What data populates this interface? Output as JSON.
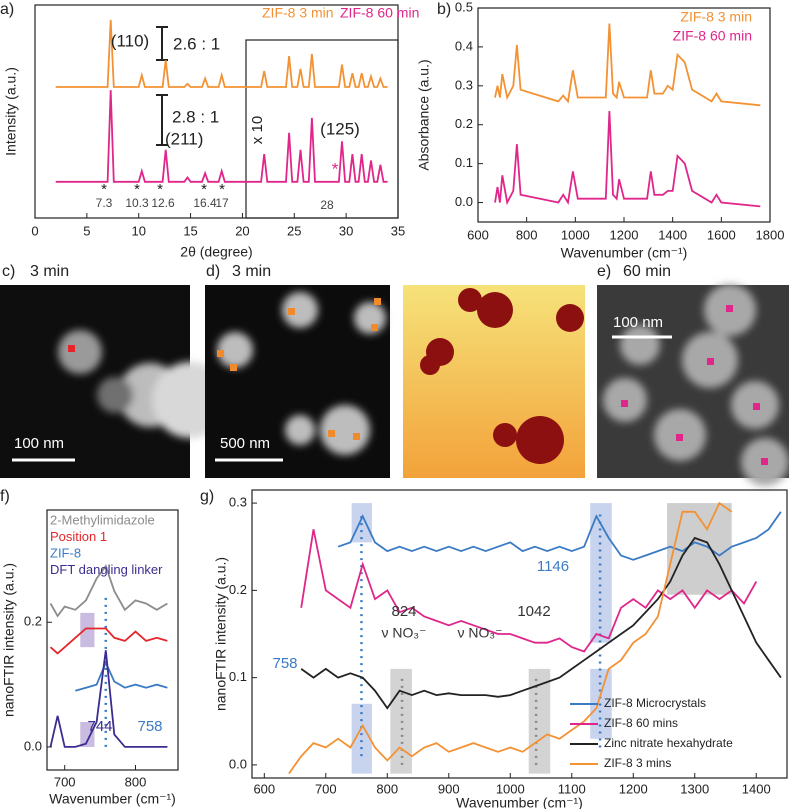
{
  "chart_data": [
    {
      "type": "line",
      "panel": "a)",
      "x_label": "2θ (degree)",
      "y_label": "Intensity (a.u.)",
      "xlim": [
        0,
        35
      ],
      "ylim": [
        0,
        1
      ],
      "xticks": [
        0,
        5,
        10,
        15,
        20,
        25,
        30,
        35
      ],
      "legend": "upper right",
      "x": [
        2,
        7.0,
        7.3,
        7.6,
        10.0,
        10.3,
        10.6,
        12.3,
        12.6,
        12.9,
        14.4,
        14.7,
        15.0,
        16.1,
        16.4,
        16.7,
        17.7,
        18.0,
        18.3,
        21.8,
        22.1,
        22.4,
        24.2,
        24.5,
        24.8,
        25.3,
        25.6,
        25.9,
        26.4,
        26.7,
        27.0,
        29.3,
        29.6,
        29.9,
        30.3,
        30.6,
        30.9,
        31.2,
        31.5,
        31.8,
        32.1,
        32.4,
        32.7,
        33.0,
        33.3,
        33.6,
        34
      ],
      "series": [
        {
          "name": "ZIF-8 3 min",
          "color": "#f39234",
          "values": [
            0.615,
            0.615,
            0.93,
            0.615,
            0.615,
            0.67,
            0.615,
            0.615,
            0.74,
            0.615,
            0.615,
            0.63,
            0.615,
            0.615,
            0.655,
            0.615,
            0.615,
            0.67,
            0.615,
            0.615,
            0.69,
            0.615,
            0.615,
            0.76,
            0.615,
            0.615,
            0.7,
            0.615,
            0.615,
            0.77,
            0.615,
            0.615,
            0.72,
            0.615,
            0.615,
            0.68,
            0.615,
            0.615,
            0.68,
            0.615,
            0.615,
            0.665,
            0.615,
            0.615,
            0.655,
            0.615,
            0.615
          ]
        },
        {
          "name": "ZIF-8 60 min",
          "color": "#e0268a",
          "values": [
            0.17,
            0.17,
            0.6,
            0.17,
            0.17,
            0.22,
            0.17,
            0.17,
            0.32,
            0.17,
            0.17,
            0.19,
            0.17,
            0.17,
            0.21,
            0.17,
            0.17,
            0.22,
            0.17,
            0.17,
            0.3,
            0.17,
            0.17,
            0.4,
            0.17,
            0.17,
            0.32,
            0.17,
            0.17,
            0.47,
            0.17,
            0.17,
            0.36,
            0.17,
            0.17,
            0.3,
            0.17,
            0.17,
            0.3,
            0.17,
            0.17,
            0.27,
            0.17,
            0.17,
            0.25,
            0.17,
            0.17
          ]
        }
      ],
      "annotations": [
        "(110)",
        "2.6 : 1",
        "2.8 : 1",
        "(211)",
        "x 10",
        "(125)",
        "*",
        "*",
        "*",
        "*",
        "*",
        "*",
        "7.3",
        "10.3",
        "12.6",
        "16.4",
        "17",
        "28"
      ]
    },
    {
      "type": "line",
      "panel": "b)",
      "x_label": "Wavenumber (cm⁻¹)",
      "y_label": "Absorbance (a.u.)",
      "xlim": [
        600,
        1800
      ],
      "ylim": [
        -0.05,
        0.5
      ],
      "xticks": [
        600,
        800,
        1000,
        1200,
        1400,
        1600,
        1800
      ],
      "yticks": [
        {
          "value": 0,
          "label": "0.0"
        },
        {
          "value": 0.1,
          "label": "0.1"
        },
        {
          "value": 0.2,
          "label": "0.2"
        },
        {
          "value": 0.3,
          "label": "0.3"
        },
        {
          "value": 0.4,
          "label": "0.4"
        },
        {
          "value": 0.5,
          "label": "0.5"
        }
      ],
      "legend": "upper right",
      "x": [
        670,
        680,
        690,
        700,
        720,
        745,
        760,
        775,
        930,
        950,
        970,
        990,
        1010,
        1125,
        1140,
        1155,
        1170,
        1180,
        1200,
        1295,
        1310,
        1325,
        1360,
        1380,
        1400,
        1420,
        1435,
        1450,
        1480,
        1560,
        1580,
        1600,
        1760
      ],
      "series": [
        {
          "name": "ZIF-8 3 min",
          "color": "#f39234",
          "values": [
            0.27,
            0.3,
            0.27,
            0.33,
            0.27,
            0.3,
            0.405,
            0.29,
            0.26,
            0.275,
            0.26,
            0.34,
            0.27,
            0.27,
            0.46,
            0.28,
            0.27,
            0.31,
            0.27,
            0.27,
            0.34,
            0.28,
            0.28,
            0.3,
            0.29,
            0.38,
            0.37,
            0.36,
            0.29,
            0.26,
            0.28,
            0.26,
            0.25
          ]
        },
        {
          "name": "ZIF-8 60 min",
          "color": "#e0268a",
          "values": [
            0.0,
            0.04,
            0.0,
            0.07,
            0.0,
            0.03,
            0.15,
            0.02,
            0.0,
            0.02,
            0.0,
            0.08,
            0.01,
            0.01,
            0.235,
            0.02,
            0.01,
            0.06,
            0.01,
            0.01,
            0.08,
            0.02,
            0.02,
            0.03,
            0.03,
            0.12,
            0.11,
            0.1,
            0.03,
            0.0,
            0.02,
            0.0,
            -0.01
          ]
        }
      ]
    },
    {
      "type": "line",
      "panel": "f)",
      "x_label": "Wavenumber (cm⁻¹)",
      "y_label": "nanoFTIR intensity (a.u.)",
      "xlim": [
        675,
        860
      ],
      "ylim": [
        -0.037,
        0.38
      ],
      "xticks": [
        700,
        800
      ],
      "yticks": [
        {
          "value": 0,
          "label": "0.0"
        },
        {
          "value": 0.2,
          "label": "0.2"
        }
      ],
      "legend": "upper left",
      "x": [
        680,
        690,
        700,
        715,
        730,
        745,
        758,
        770,
        785,
        800,
        815,
        830,
        845
      ],
      "series": [
        {
          "name": "2-Methylimidazole",
          "color": "#8c8c8c",
          "values": [
            0.23,
            0.21,
            0.225,
            0.22,
            0.235,
            0.27,
            0.29,
            0.25,
            0.22,
            0.235,
            0.23,
            0.22,
            0.23
          ]
        },
        {
          "name": "Position 1",
          "color": "#e4262b",
          "values": [
            0.16,
            0.15,
            0.16,
            0.175,
            0.19,
            0.19,
            0.19,
            0.175,
            0.17,
            0.185,
            0.17,
            0.175,
            0.17
          ]
        },
        {
          "name": "ZIF-8",
          "color": "#3b7bc4",
          "values": [
            null,
            null,
            null,
            0.09,
            0.095,
            0.1,
            0.135,
            0.105,
            0.095,
            0.1,
            0.095,
            0.1,
            0.095
          ]
        },
        {
          "name": "DFT dangling linker",
          "color": "#3a2d8f",
          "values": [
            0.0,
            0.05,
            0.0,
            0.0,
            0.005,
            0.04,
            0.155,
            0.02,
            0.0,
            0.0,
            0.0,
            0.0,
            0.0
          ]
        }
      ],
      "bands": [
        {
          "x": [
            722,
            742
          ],
          "y": [
            0.16,
            0.215
          ],
          "color": "#b7a6d6"
        },
        {
          "x": [
            722,
            742
          ],
          "y": [
            0.0,
            0.04
          ],
          "color": "#b7a6d6"
        }
      ],
      "vlines": [
        {
          "x": 758,
          "y": [
            0.0,
            0.24
          ],
          "color": "#3b7bc4"
        }
      ],
      "annotations": [
        "744",
        "758"
      ]
    },
    {
      "type": "line",
      "panel": "g)",
      "x_label": "Wavenumber (cm⁻¹)",
      "y_label": "nanoFTIR intensity (a.u.)",
      "xlim": [
        580,
        1450
      ],
      "ylim": [
        -0.015,
        0.315
      ],
      "xticks": [
        600,
        700,
        800,
        900,
        1000,
        1100,
        1200,
        1300,
        1400
      ],
      "yticks": [
        {
          "value": 0,
          "label": "0.0"
        },
        {
          "value": 0.1,
          "label": "0.1"
        },
        {
          "value": 0.2,
          "label": "0.2"
        },
        {
          "value": 0.3,
          "label": "0.3"
        }
      ],
      "legend": "lower right",
      "x": [
        640,
        660,
        680,
        700,
        720,
        740,
        760,
        780,
        800,
        820,
        840,
        860,
        880,
        900,
        920,
        940,
        960,
        980,
        1000,
        1020,
        1040,
        1060,
        1080,
        1100,
        1120,
        1140,
        1160,
        1180,
        1200,
        1220,
        1240,
        1260,
        1280,
        1300,
        1320,
        1340,
        1360,
        1380,
        1400,
        1420,
        1440
      ],
      "series": [
        {
          "name": "ZIF-8 Microcrystals",
          "color": "#3b7bc4",
          "values": [
            null,
            null,
            null,
            null,
            0.25,
            0.255,
            0.285,
            0.255,
            0.245,
            0.25,
            0.245,
            0.25,
            0.245,
            0.25,
            0.245,
            0.25,
            0.245,
            0.25,
            0.255,
            0.245,
            0.25,
            0.245,
            0.25,
            0.245,
            0.25,
            0.285,
            0.26,
            0.24,
            0.235,
            0.24,
            0.245,
            0.25,
            0.245,
            0.255,
            0.25,
            0.24,
            0.25,
            0.255,
            0.26,
            0.27,
            0.29
          ]
        },
        {
          "name": "ZIF-8 60 mins",
          "color": "#e0268a",
          "values": [
            null,
            0.18,
            0.27,
            0.2,
            0.19,
            0.18,
            0.23,
            0.19,
            0.2,
            0.175,
            0.18,
            0.17,
            0.165,
            0.16,
            0.165,
            0.16,
            0.155,
            0.15,
            0.15,
            0.145,
            0.14,
            0.14,
            0.145,
            0.135,
            0.13,
            0.15,
            0.145,
            0.18,
            0.19,
            0.18,
            0.2,
            0.19,
            0.2,
            0.18,
            0.2,
            0.19,
            0.2,
            0.185,
            0.21,
            null,
            null
          ]
        },
        {
          "name": "Zinc nitrate hexahydrate",
          "color": "#222222",
          "values": [
            null,
            0.11,
            0.1,
            0.11,
            0.1,
            0.105,
            0.1,
            0.085,
            0.065,
            0.085,
            0.08,
            0.085,
            0.08,
            0.082,
            0.08,
            0.08,
            0.08,
            0.078,
            0.08,
            0.085,
            0.09,
            0.095,
            0.1,
            0.11,
            0.12,
            0.13,
            0.14,
            0.15,
            0.16,
            0.175,
            0.19,
            0.21,
            0.24,
            0.26,
            0.255,
            0.23,
            0.2,
            0.17,
            0.14,
            0.12,
            0.1
          ]
        },
        {
          "name": "ZIF-8 3 mins",
          "color": "#f39234",
          "values": [
            -0.01,
            0.01,
            0.025,
            0.02,
            0.03,
            0.02,
            0.045,
            0.02,
            0.005,
            0.02,
            0.01,
            0.02,
            0.025,
            0.015,
            0.02,
            0.025,
            0.02,
            0.015,
            0.02,
            0.015,
            0.025,
            0.035,
            0.03,
            0.04,
            0.05,
            0.065,
            0.11,
            0.12,
            0.14,
            0.15,
            0.17,
            0.23,
            0.29,
            0.29,
            0.27,
            0.3,
            0.29,
            null,
            null,
            null,
            null
          ]
        }
      ],
      "bands": [
        {
          "x": [
            742,
            775
          ],
          "y": [
            0.255,
            0.3
          ],
          "color": "#b5c4e8"
        },
        {
          "x": [
            742,
            775
          ],
          "y": [
            -0.01,
            0.07
          ],
          "color": "#b5c4e8"
        },
        {
          "x": [
            805,
            840
          ],
          "y": [
            -0.01,
            0.11
          ],
          "color": "#c4c4c4"
        },
        {
          "x": [
            1030,
            1065
          ],
          "y": [
            -0.01,
            0.11
          ],
          "color": "#c4c4c4"
        },
        {
          "x": [
            1130,
            1165
          ],
          "y": [
            0.14,
            0.3
          ],
          "color": "#b5c4e8"
        },
        {
          "x": [
            1130,
            1165
          ],
          "y": [
            0.03,
            0.11
          ],
          "color": "#b5c4e8"
        },
        {
          "x": [
            1255,
            1360
          ],
          "y": [
            0.195,
            0.3
          ],
          "color": "#bdbdbd"
        }
      ],
      "vlines": [
        {
          "x": 758,
          "y": [
            0.01,
            0.29
          ],
          "color": "#3b7bc4"
        },
        {
          "x": 824,
          "y": [
            0.0,
            0.1
          ],
          "color": "#888888"
        },
        {
          "x": 1042,
          "y": [
            0.0,
            0.1
          ],
          "color": "#888888"
        },
        {
          "x": 1146,
          "y": [
            0.02,
            0.29
          ],
          "color": "#3b7bc4"
        }
      ],
      "annotations": [
        "758",
        "824",
        "ν NO₃⁻",
        "1042",
        "ν NO₃⁻",
        "1146"
      ]
    }
  ],
  "images": [
    {
      "panel": "c)",
      "title": "3 min",
      "scale_bar": "100 nm"
    },
    {
      "panel": "d)",
      "title": "3 min",
      "scale_bar": "500 nm"
    },
    {
      "panel": "e)",
      "title": "60 min",
      "scale_bar": "100 nm"
    }
  ]
}
